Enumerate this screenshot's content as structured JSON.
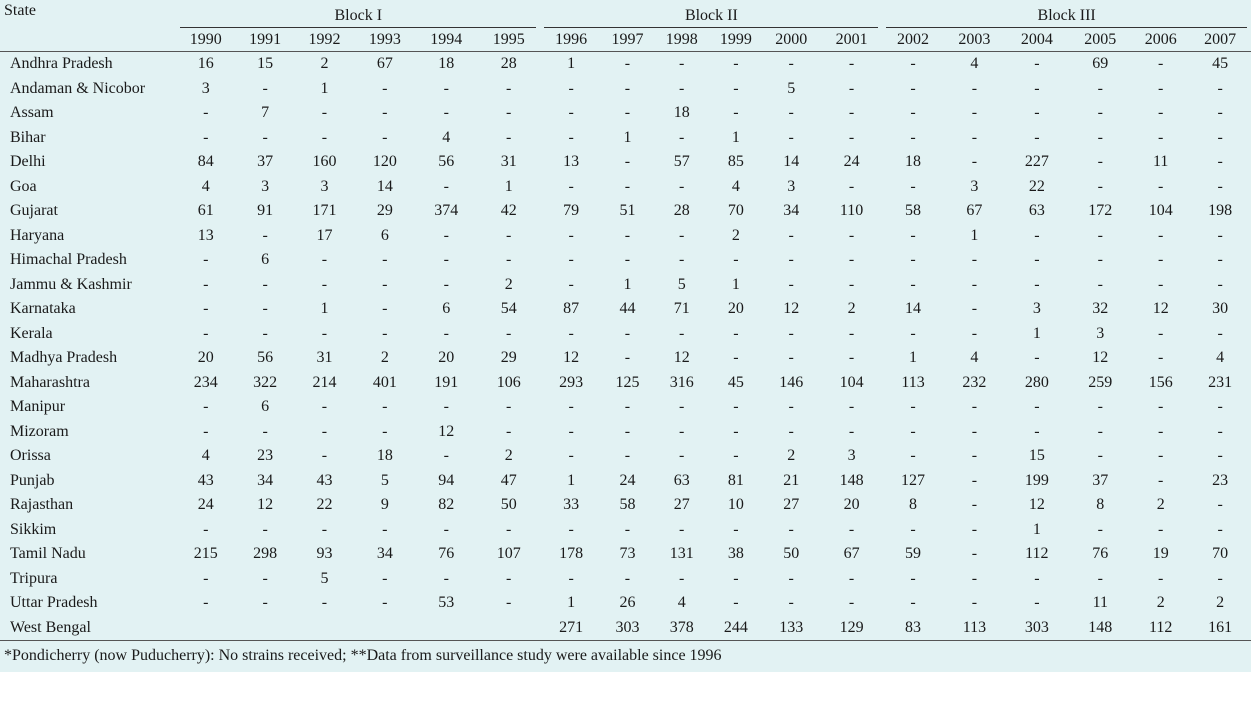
{
  "header": {
    "state_label": "State",
    "blocks": [
      "Block I",
      "Block II",
      "Block III"
    ],
    "years": [
      "1990",
      "1991",
      "1992",
      "1993",
      "1994",
      "1995",
      "1996",
      "1997",
      "1998",
      "1999",
      "2000",
      "2001",
      "2002",
      "2003",
      "2004",
      "2005",
      "2006",
      "2007"
    ]
  },
  "rows": [
    {
      "state": "Andhra Pradesh",
      "values": [
        "16",
        "15",
        "2",
        "67",
        "18",
        "28",
        "1",
        "-",
        "-",
        "-",
        "-",
        "-",
        "-",
        "4",
        "-",
        "69",
        "-",
        "45"
      ]
    },
    {
      "state": "Andaman & Nicobor",
      "values": [
        "3",
        "-",
        "1",
        "-",
        "-",
        "-",
        "-",
        "-",
        "-",
        "-",
        "5",
        "-",
        "-",
        "-",
        "-",
        "-",
        "-",
        "-"
      ]
    },
    {
      "state": "Assam",
      "values": [
        "-",
        "7",
        "-",
        "-",
        "-",
        "-",
        "-",
        "-",
        "18",
        "-",
        "-",
        "-",
        "-",
        "-",
        "-",
        "-",
        "-",
        "-"
      ]
    },
    {
      "state": "Bihar",
      "values": [
        "-",
        "-",
        "-",
        "-",
        "4",
        "-",
        "-",
        "1",
        "-",
        "1",
        "-",
        "-",
        "-",
        "-",
        "-",
        "-",
        "-",
        "-"
      ]
    },
    {
      "state": "Delhi",
      "values": [
        "84",
        "37",
        "160",
        "120",
        "56",
        "31",
        "13",
        "-",
        "57",
        "85",
        "14",
        "24",
        "18",
        "-",
        "227",
        "-",
        "11",
        "-"
      ]
    },
    {
      "state": "Goa",
      "values": [
        "4",
        "3",
        "3",
        "14",
        "-",
        "1",
        "-",
        "-",
        "-",
        "4",
        "3",
        "-",
        "-",
        "3",
        "22",
        "-",
        "-",
        "-"
      ]
    },
    {
      "state": "Gujarat",
      "values": [
        "61",
        "91",
        "171",
        "29",
        "374",
        "42",
        "79",
        "51",
        "28",
        "70",
        "34",
        "110",
        "58",
        "67",
        "63",
        "172",
        "104",
        "198"
      ]
    },
    {
      "state": "Haryana",
      "values": [
        "13",
        "-",
        "17",
        "6",
        "-",
        "-",
        "-",
        "-",
        "-",
        "2",
        "-",
        "-",
        "-",
        "1",
        "-",
        "-",
        "-",
        "-"
      ]
    },
    {
      "state": "Himachal Pradesh",
      "values": [
        "-",
        "6",
        "-",
        "-",
        "-",
        "-",
        "-",
        "-",
        "-",
        "-",
        "-",
        "-",
        "-",
        "-",
        "-",
        "-",
        "-",
        "-"
      ]
    },
    {
      "state": "Jammu & Kashmir",
      "values": [
        "-",
        "-",
        "-",
        "-",
        "-",
        "2",
        "-",
        "1",
        "5",
        "1",
        "-",
        "-",
        "-",
        "-",
        "-",
        "-",
        "-",
        "-"
      ]
    },
    {
      "state": "Karnataka",
      "values": [
        "-",
        "-",
        "1",
        "-",
        "6",
        "54",
        "87",
        "44",
        "71",
        "20",
        "12",
        "2",
        "14",
        "-",
        "3",
        "32",
        "12",
        "30"
      ]
    },
    {
      "state": "Kerala",
      "values": [
        "-",
        "-",
        "-",
        "-",
        "-",
        "-",
        "-",
        "-",
        "-",
        "-",
        "-",
        "-",
        "-",
        "-",
        "1",
        "3",
        "-",
        "-"
      ]
    },
    {
      "state": "Madhya Pradesh",
      "values": [
        "20",
        "56",
        "31",
        "2",
        "20",
        "29",
        "12",
        "-",
        "12",
        "-",
        "-",
        "-",
        "1",
        "4",
        "-",
        "12",
        "-",
        "4"
      ]
    },
    {
      "state": "Maharashtra",
      "values": [
        "234",
        "322",
        "214",
        "401",
        "191",
        "106",
        "293",
        "125",
        "316",
        "45",
        "146",
        "104",
        "113",
        "232",
        "280",
        "259",
        "156",
        "231"
      ]
    },
    {
      "state": "Manipur",
      "values": [
        "-",
        "6",
        "-",
        "-",
        "-",
        "-",
        "-",
        "-",
        "-",
        "-",
        "-",
        "-",
        "-",
        "-",
        "-",
        "-",
        "-",
        "-"
      ]
    },
    {
      "state": "Mizoram",
      "values": [
        "-",
        "-",
        "-",
        "-",
        "12",
        "-",
        "-",
        "-",
        "-",
        "-",
        "-",
        "-",
        "-",
        "-",
        "-",
        "-",
        "-",
        "-"
      ]
    },
    {
      "state": "Orissa",
      "values": [
        "4",
        "23",
        "-",
        "18",
        "-",
        "2",
        "-",
        "-",
        "-",
        "-",
        "2",
        "3",
        "-",
        "-",
        "15",
        "-",
        "-",
        "-"
      ]
    },
    {
      "state": "Punjab",
      "values": [
        "43",
        "34",
        "43",
        "5",
        "94",
        "47",
        "1",
        "24",
        "63",
        "81",
        "21",
        "148",
        "127",
        "-",
        "199",
        "37",
        "-",
        "23"
      ]
    },
    {
      "state": "Rajasthan",
      "values": [
        "24",
        "12",
        "22",
        "9",
        "82",
        "50",
        "33",
        "58",
        "27",
        "10",
        "27",
        "20",
        "8",
        "-",
        "12",
        "8",
        "2",
        "-"
      ]
    },
    {
      "state": "Sikkim",
      "values": [
        "-",
        "-",
        "-",
        "-",
        "-",
        "-",
        "-",
        "-",
        "-",
        "-",
        "-",
        "-",
        "-",
        "-",
        "1",
        "-",
        "-",
        "-"
      ]
    },
    {
      "state": "Tamil Nadu",
      "values": [
        "215",
        "298",
        "93",
        "34",
        "76",
        "107",
        "178",
        "73",
        "131",
        "38",
        "50",
        "67",
        "59",
        "-",
        "112",
        "76",
        "19",
        "70"
      ]
    },
    {
      "state": "Tripura",
      "values": [
        "-",
        "-",
        "5",
        "-",
        "-",
        "-",
        "-",
        "-",
        "-",
        "-",
        "-",
        "-",
        "-",
        "-",
        "-",
        "-",
        "-",
        "-"
      ]
    },
    {
      "state": "Uttar Pradesh",
      "values": [
        "-",
        "-",
        "-",
        "-",
        "53",
        "-",
        "1",
        "26",
        "4",
        "-",
        "-",
        "-",
        "-",
        "-",
        "-",
        "11",
        "2",
        "2"
      ]
    },
    {
      "state": "West Bengal",
      "values": [
        "",
        "",
        "",
        "",
        "",
        "",
        "271",
        "303",
        "378",
        "244",
        "133",
        "129",
        "83",
        "113",
        "303",
        "148",
        "112",
        "161"
      ]
    }
  ],
  "footnote": "*Pondicherry (now Puducherry): No strains received; **Data from surveillance study were available since 1996"
}
